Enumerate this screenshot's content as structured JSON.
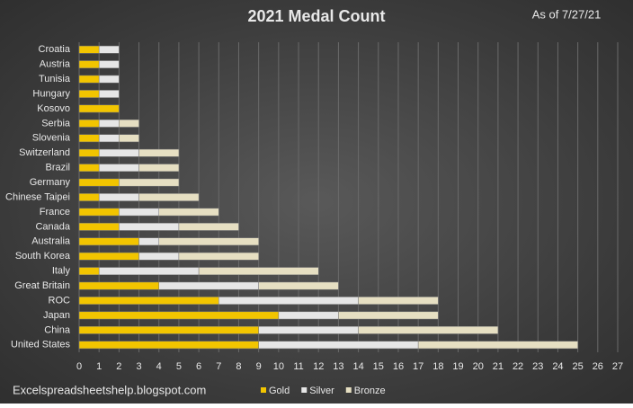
{
  "chart_data": {
    "type": "stacked-horizontal-bar",
    "title": "2021 Medal Count",
    "annotation": "As of 7/27/21",
    "source": "Excelspreadsheetshelp.blogspot.com",
    "categories": [
      "Croatia",
      "Austria",
      "Tunisia",
      "Hungary",
      "Kosovo",
      "Serbia",
      "Slovenia",
      "Switzerland",
      "Brazil",
      "Germany",
      "Chinese Taipei",
      "France",
      "Canada",
      "Australia",
      "South Korea",
      "Italy",
      "Great Britain",
      "ROC",
      "Japan",
      "China",
      "United States"
    ],
    "series": [
      {
        "name": "Gold",
        "color": "#f2c500",
        "values": [
          1,
          1,
          1,
          1,
          2,
          1,
          1,
          1,
          1,
          2,
          1,
          2,
          2,
          3,
          3,
          1,
          4,
          7,
          10,
          9,
          9
        ]
      },
      {
        "name": "Silver",
        "color": "#e6e6e6",
        "values": [
          1,
          1,
          1,
          1,
          0,
          1,
          1,
          2,
          2,
          0,
          2,
          2,
          3,
          1,
          2,
          5,
          5,
          7,
          3,
          5,
          8
        ]
      },
      {
        "name": "Bronze",
        "color": "#e6dfc2",
        "values": [
          0,
          0,
          0,
          0,
          0,
          1,
          1,
          2,
          2,
          3,
          3,
          3,
          3,
          5,
          4,
          6,
          4,
          4,
          5,
          7,
          8
        ]
      }
    ],
    "xlim": [
      0,
      27
    ],
    "xticks": [
      0,
      1,
      2,
      3,
      4,
      5,
      6,
      7,
      8,
      9,
      10,
      11,
      12,
      13,
      14,
      15,
      16,
      17,
      18,
      19,
      20,
      21,
      22,
      23,
      24,
      25,
      26,
      27
    ],
    "grid": true,
    "legend": "bottom"
  }
}
